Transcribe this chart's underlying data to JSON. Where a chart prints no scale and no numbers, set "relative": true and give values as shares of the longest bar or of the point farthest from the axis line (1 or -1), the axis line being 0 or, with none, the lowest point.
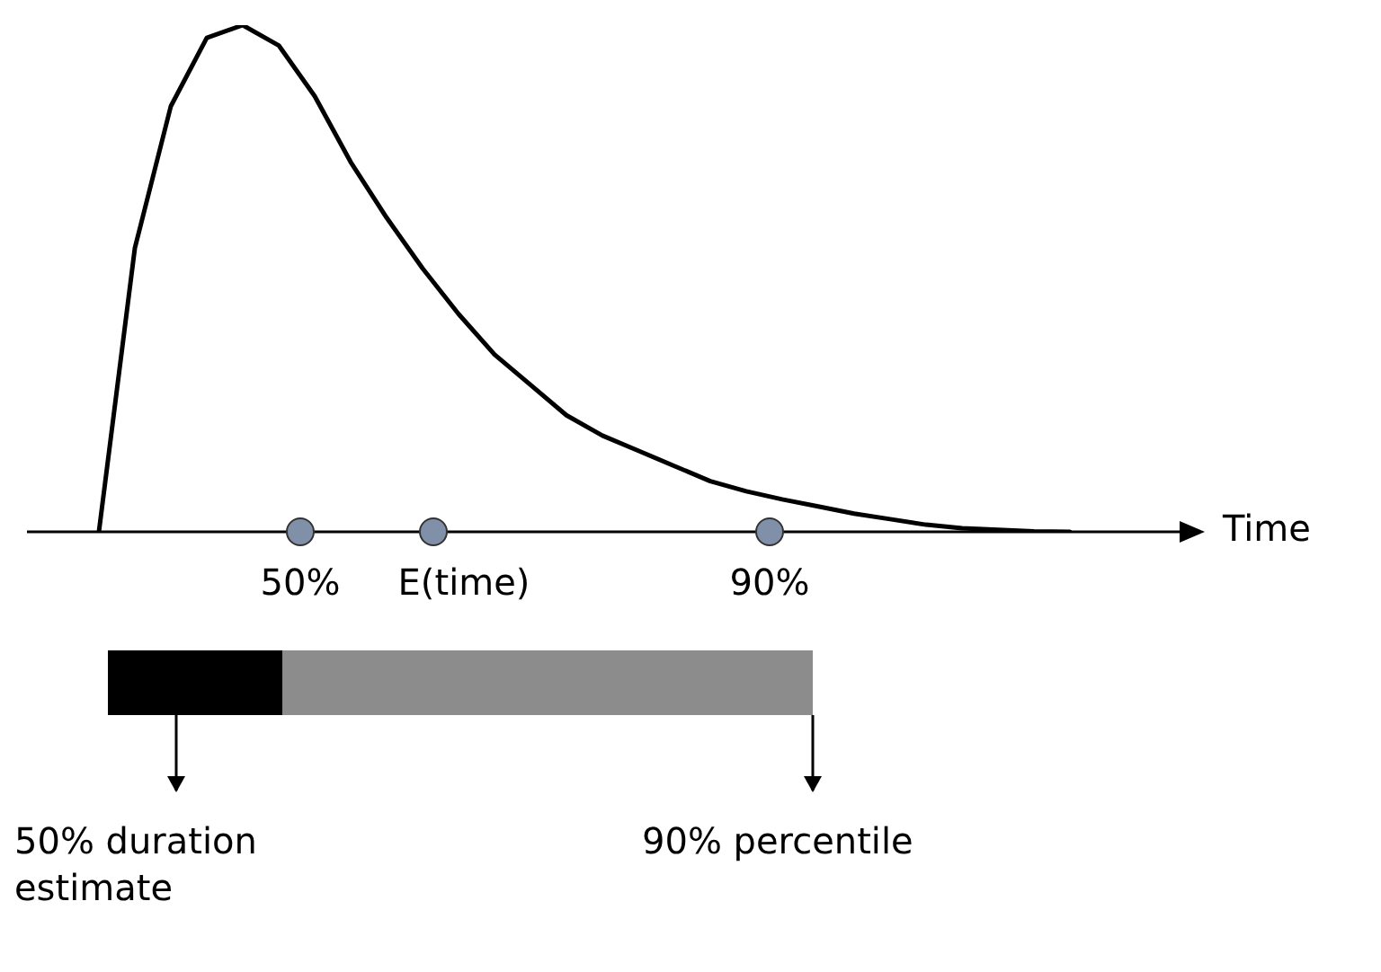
{
  "chart_data": {
    "type": "line",
    "relative": true,
    "xlabel": "Time",
    "categories": [
      null,
      null,
      null,
      null,
      null,
      null,
      null,
      null,
      null,
      null,
      null,
      null,
      null,
      null,
      null,
      null,
      null,
      null,
      null,
      null,
      null,
      null,
      null,
      null,
      null,
      null,
      null,
      null,
      null,
      null,
      null,
      null,
      null
    ],
    "series": [
      {
        "color": "#000000",
        "values": [
          null,
          null,
          0,
          0.56,
          0.84,
          0.975,
          1,
          0.96,
          0.86,
          0.73,
          0.62,
          0.52,
          0.43,
          0.35,
          0.29,
          0.23,
          0.19,
          0.16,
          0.13,
          0.1,
          0.08,
          0.064,
          0.05,
          0.036,
          0.025,
          0.014,
          0.007,
          0.004,
          0.001,
          0,
          null,
          null,
          null
        ]
      }
    ],
    "annotations": [
      "50%",
      "E(time)",
      "90%",
      "50% duration estimate",
      "90% percentile"
    ]
  }
}
